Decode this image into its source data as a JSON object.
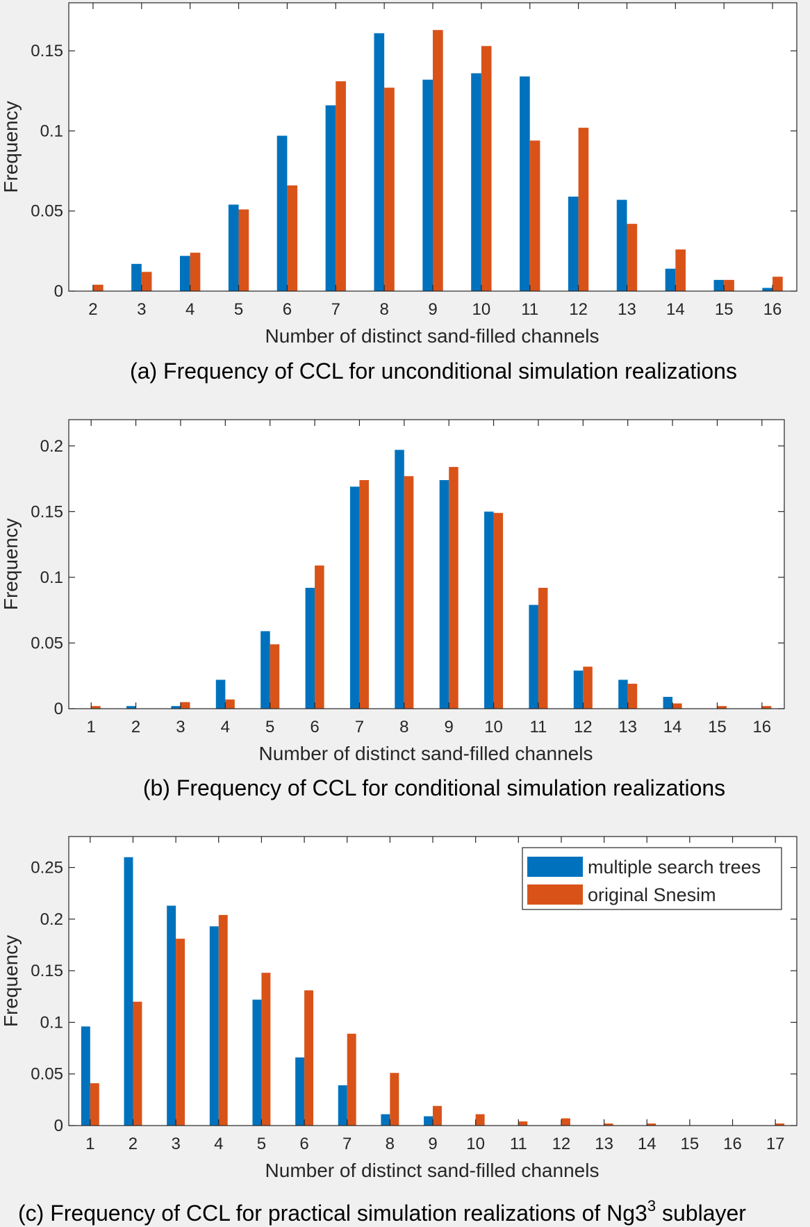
{
  "chart_data": [
    {
      "type": "bar",
      "caption": "(a) Frequency of CCL for unconditional simulation realizations",
      "xlabel": "Number of distinct sand-filled channels",
      "ylabel": "Frequency",
      "categories": [
        2,
        3,
        4,
        5,
        6,
        7,
        8,
        9,
        10,
        11,
        12,
        13,
        14,
        15,
        16
      ],
      "xlim": [
        1.5,
        16.5
      ],
      "ylim": [
        0,
        0.18
      ],
      "yticks": [
        0,
        0.05,
        0.1,
        0.15
      ],
      "ytick_labels": [
        "0",
        "0.05",
        "0.1",
        "0.15"
      ],
      "series": [
        {
          "values": [
            0,
            0.017,
            0.022,
            0.054,
            0.097,
            0.116,
            0.161,
            0.132,
            0.136,
            0.134,
            0.059,
            0.057,
            0.014,
            0.007,
            0.002
          ]
        },
        {
          "values": [
            0.004,
            0.012,
            0.024,
            0.051,
            0.066,
            0.131,
            0.127,
            0.163,
            0.153,
            0.094,
            0.102,
            0.042,
            0.026,
            0.007,
            0.009
          ]
        }
      ]
    },
    {
      "type": "bar",
      "caption": "(b) Frequency of CCL for conditional simulation realizations",
      "xlabel": "Number of distinct sand-filled channels",
      "ylabel": "Frequency",
      "categories": [
        1,
        2,
        3,
        4,
        5,
        6,
        7,
        8,
        9,
        10,
        11,
        12,
        13,
        14,
        15,
        16
      ],
      "xlim": [
        0.5,
        16.5
      ],
      "ylim": [
        0,
        0.22
      ],
      "yticks": [
        0,
        0.05,
        0.1,
        0.15,
        0.2
      ],
      "ytick_labels": [
        "0",
        "0.05",
        "0.1",
        "0.15",
        "0.2"
      ],
      "series": [
        {
          "values": [
            0,
            0.002,
            0.002,
            0.022,
            0.059,
            0.092,
            0.169,
            0.197,
            0.174,
            0.15,
            0.079,
            0.029,
            0.022,
            0.009,
            0,
            0
          ]
        },
        {
          "values": [
            0.002,
            0,
            0.005,
            0.007,
            0.049,
            0.109,
            0.174,
            0.177,
            0.184,
            0.149,
            0.092,
            0.032,
            0.019,
            0.004,
            0.002,
            0.002
          ]
        }
      ]
    },
    {
      "type": "bar",
      "caption": "(c) Frequency of CCL for practical simulation realizations of Ng3",
      "caption_sup": "3",
      "caption_tail": " sublayer",
      "xlabel": "Number of distinct sand-filled channels",
      "ylabel": "Frequency",
      "categories": [
        1,
        2,
        3,
        4,
        5,
        6,
        7,
        8,
        9,
        10,
        11,
        12,
        13,
        14,
        15,
        16,
        17
      ],
      "xlim": [
        0.5,
        17.5
      ],
      "ylim": [
        0,
        0.28
      ],
      "yticks": [
        0,
        0.05,
        0.1,
        0.15,
        0.2,
        0.25
      ],
      "ytick_labels": [
        "0",
        "0.05",
        "0.1",
        "0.15",
        "0.2",
        "0.25"
      ],
      "legend_position": "top-right",
      "series": [
        {
          "name": "multiple search trees",
          "values": [
            0.096,
            0.26,
            0.213,
            0.193,
            0.122,
            0.066,
            0.039,
            0.011,
            0.009,
            0,
            0,
            0,
            0,
            0,
            0,
            0,
            0
          ]
        },
        {
          "name": "original Snesim",
          "values": [
            0.041,
            0.12,
            0.181,
            0.204,
            0.148,
            0.131,
            0.089,
            0.051,
            0.019,
            0.011,
            0.004,
            0.007,
            0.002,
            0.002,
            0,
            0,
            0.002
          ]
        }
      ]
    }
  ],
  "colors": {
    "series_0": "#0072BD",
    "series_1": "#D95319"
  }
}
